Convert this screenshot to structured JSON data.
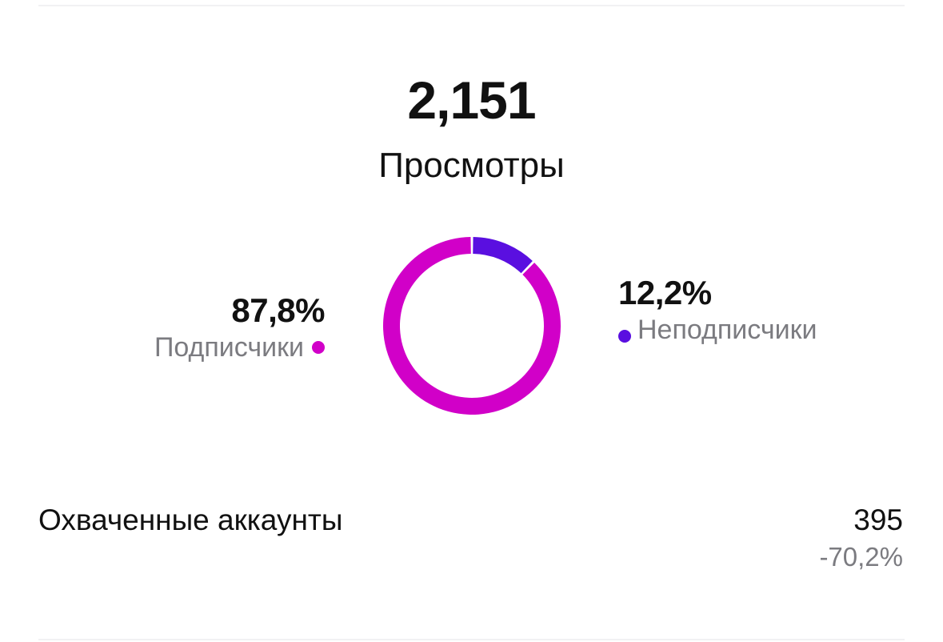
{
  "total": {
    "value": "2,151",
    "label": "Просмотры"
  },
  "chart_data": {
    "type": "pie",
    "categories": [
      "Подписчики",
      "Неподписчики"
    ],
    "values": [
      87.8,
      12.2
    ],
    "colors": [
      "#d100c8",
      "#5a0fe0"
    ],
    "labels": [
      "87,8%",
      "12,2%"
    ]
  },
  "legend": {
    "followers": {
      "percent": "87,8%",
      "label": "Подписчики",
      "color": "#d100c8"
    },
    "non_followers": {
      "percent": "12,2%",
      "label": "Неподписчики",
      "color": "#5a0fe0"
    }
  },
  "reach": {
    "label": "Охваченные аккаунты",
    "value": "395",
    "change": "-70,2%"
  }
}
